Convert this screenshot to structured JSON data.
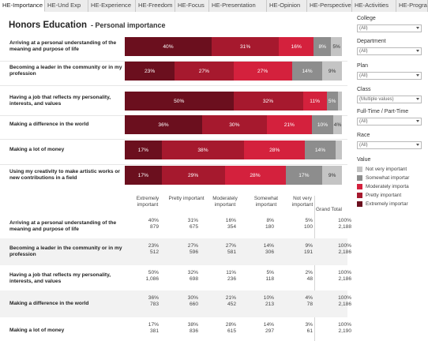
{
  "tabs": [
    "HE-Importance",
    "HE-Und Exp",
    "HE-Experience",
    "HE-Freedom",
    "HE-Focus",
    "HE-Presentation",
    "HE-Opinion",
    "HE-Perspective",
    "HE-Activities",
    "HE-Program"
  ],
  "active_tab": 0,
  "title": "Honors Education",
  "subtitle": "- Personal importance",
  "colors": {
    "extremely": "#6b0f1e",
    "pretty": "#a6192e",
    "moderately": "#d4213d",
    "somewhat": "#8d8d8d",
    "not_very": "#c4c4c4"
  },
  "chart_data": {
    "type": "bar",
    "orientation": "horizontal-stacked-100",
    "categories": [
      "Arriving at a personal understanding of the meaning and purpose of life",
      "Becoming a leader in the community or in my profession",
      "Having a job that reflects my personality, interests, and values",
      "Making a difference in the world",
      "Making a lot of money",
      "Using my creativity to make artistic works or new contributions in a field"
    ],
    "series": [
      {
        "name": "Extremely important",
        "color": "#6b0f1e",
        "values": [
          40,
          23,
          50,
          36,
          17,
          17
        ]
      },
      {
        "name": "Pretty important",
        "color": "#a6192e",
        "values": [
          31,
          27,
          32,
          30,
          38,
          29
        ]
      },
      {
        "name": "Moderately important",
        "color": "#d4213d",
        "values": [
          16,
          27,
          11,
          21,
          28,
          28
        ]
      },
      {
        "name": "Somewhat important",
        "color": "#8d8d8d",
        "values": [
          8,
          14,
          5,
          10,
          14,
          17
        ]
      },
      {
        "name": "Not very important",
        "color": "#c4c4c4",
        "values": [
          5,
          9,
          2,
          4,
          3,
          9
        ]
      }
    ],
    "bar_labels": [
      [
        "40%",
        "31%",
        "16%",
        "8%",
        "5%"
      ],
      [
        "23%",
        "27%",
        "27%",
        "14%",
        "9%"
      ],
      [
        "50%",
        "32%",
        "11%",
        "5%",
        ""
      ],
      [
        "36%",
        "30%",
        "21%",
        "10%",
        "4%"
      ],
      [
        "17%",
        "38%",
        "28%",
        "14%",
        ""
      ],
      [
        "17%",
        "29%",
        "28%",
        "17%",
        "9%"
      ]
    ],
    "xlim": [
      0,
      100
    ]
  },
  "table": {
    "headers": [
      "Extremely important",
      "Pretty important",
      "Moderately important",
      "Somewhat important",
      "Not very important"
    ],
    "grand_total_label": "Grand Total",
    "rows": [
      {
        "label": "Arriving at a personal understanding of the meaning and purpose of life",
        "pct": [
          "40%",
          "31%",
          "16%",
          "8%",
          "5%"
        ],
        "n": [
          "879",
          "675",
          "354",
          "180",
          "100"
        ],
        "total_pct": "100%",
        "total_n": "2,188"
      },
      {
        "label": "Becoming a leader in the community or in my profession",
        "pct": [
          "23%",
          "27%",
          "27%",
          "14%",
          "9%"
        ],
        "n": [
          "512",
          "596",
          "581",
          "306",
          "191"
        ],
        "total_pct": "100%",
        "total_n": "2,186"
      },
      {
        "label": "Having a job that reflects my personality, interests, and values",
        "pct": [
          "50%",
          "32%",
          "11%",
          "5%",
          "2%"
        ],
        "n": [
          "1,086",
          "698",
          "236",
          "118",
          "48"
        ],
        "total_pct": "100%",
        "total_n": "2,186"
      },
      {
        "label": "Making a difference in the world",
        "pct": [
          "36%",
          "30%",
          "21%",
          "10%",
          "4%"
        ],
        "n": [
          "783",
          "660",
          "452",
          "213",
          "78"
        ],
        "total_pct": "100%",
        "total_n": "2,186"
      },
      {
        "label": "Making a lot of money",
        "pct": [
          "17%",
          "38%",
          "28%",
          "14%",
          "3%"
        ],
        "n": [
          "381",
          "836",
          "615",
          "297",
          "61"
        ],
        "total_pct": "100%",
        "total_n": "2,190"
      }
    ]
  },
  "filters": [
    {
      "label": "College",
      "value": "(All)"
    },
    {
      "label": "Department",
      "value": "(All)"
    },
    {
      "label": "Plan",
      "value": "(All)"
    },
    {
      "label": "Class",
      "value": "(Multiple values)"
    },
    {
      "label": "Full-Time / Part-Time",
      "value": "(All)"
    },
    {
      "label": "Race",
      "value": "(All)"
    }
  ],
  "legend": {
    "title": "Value",
    "items": [
      {
        "label": "Not very important",
        "color": "#c4c4c4"
      },
      {
        "label": "Somewhat importar",
        "color": "#8d8d8d"
      },
      {
        "label": "Moderately importa",
        "color": "#d4213d"
      },
      {
        "label": "Pretty important",
        "color": "#a6192e"
      },
      {
        "label": "Extremely importar",
        "color": "#6b0f1e"
      }
    ]
  }
}
